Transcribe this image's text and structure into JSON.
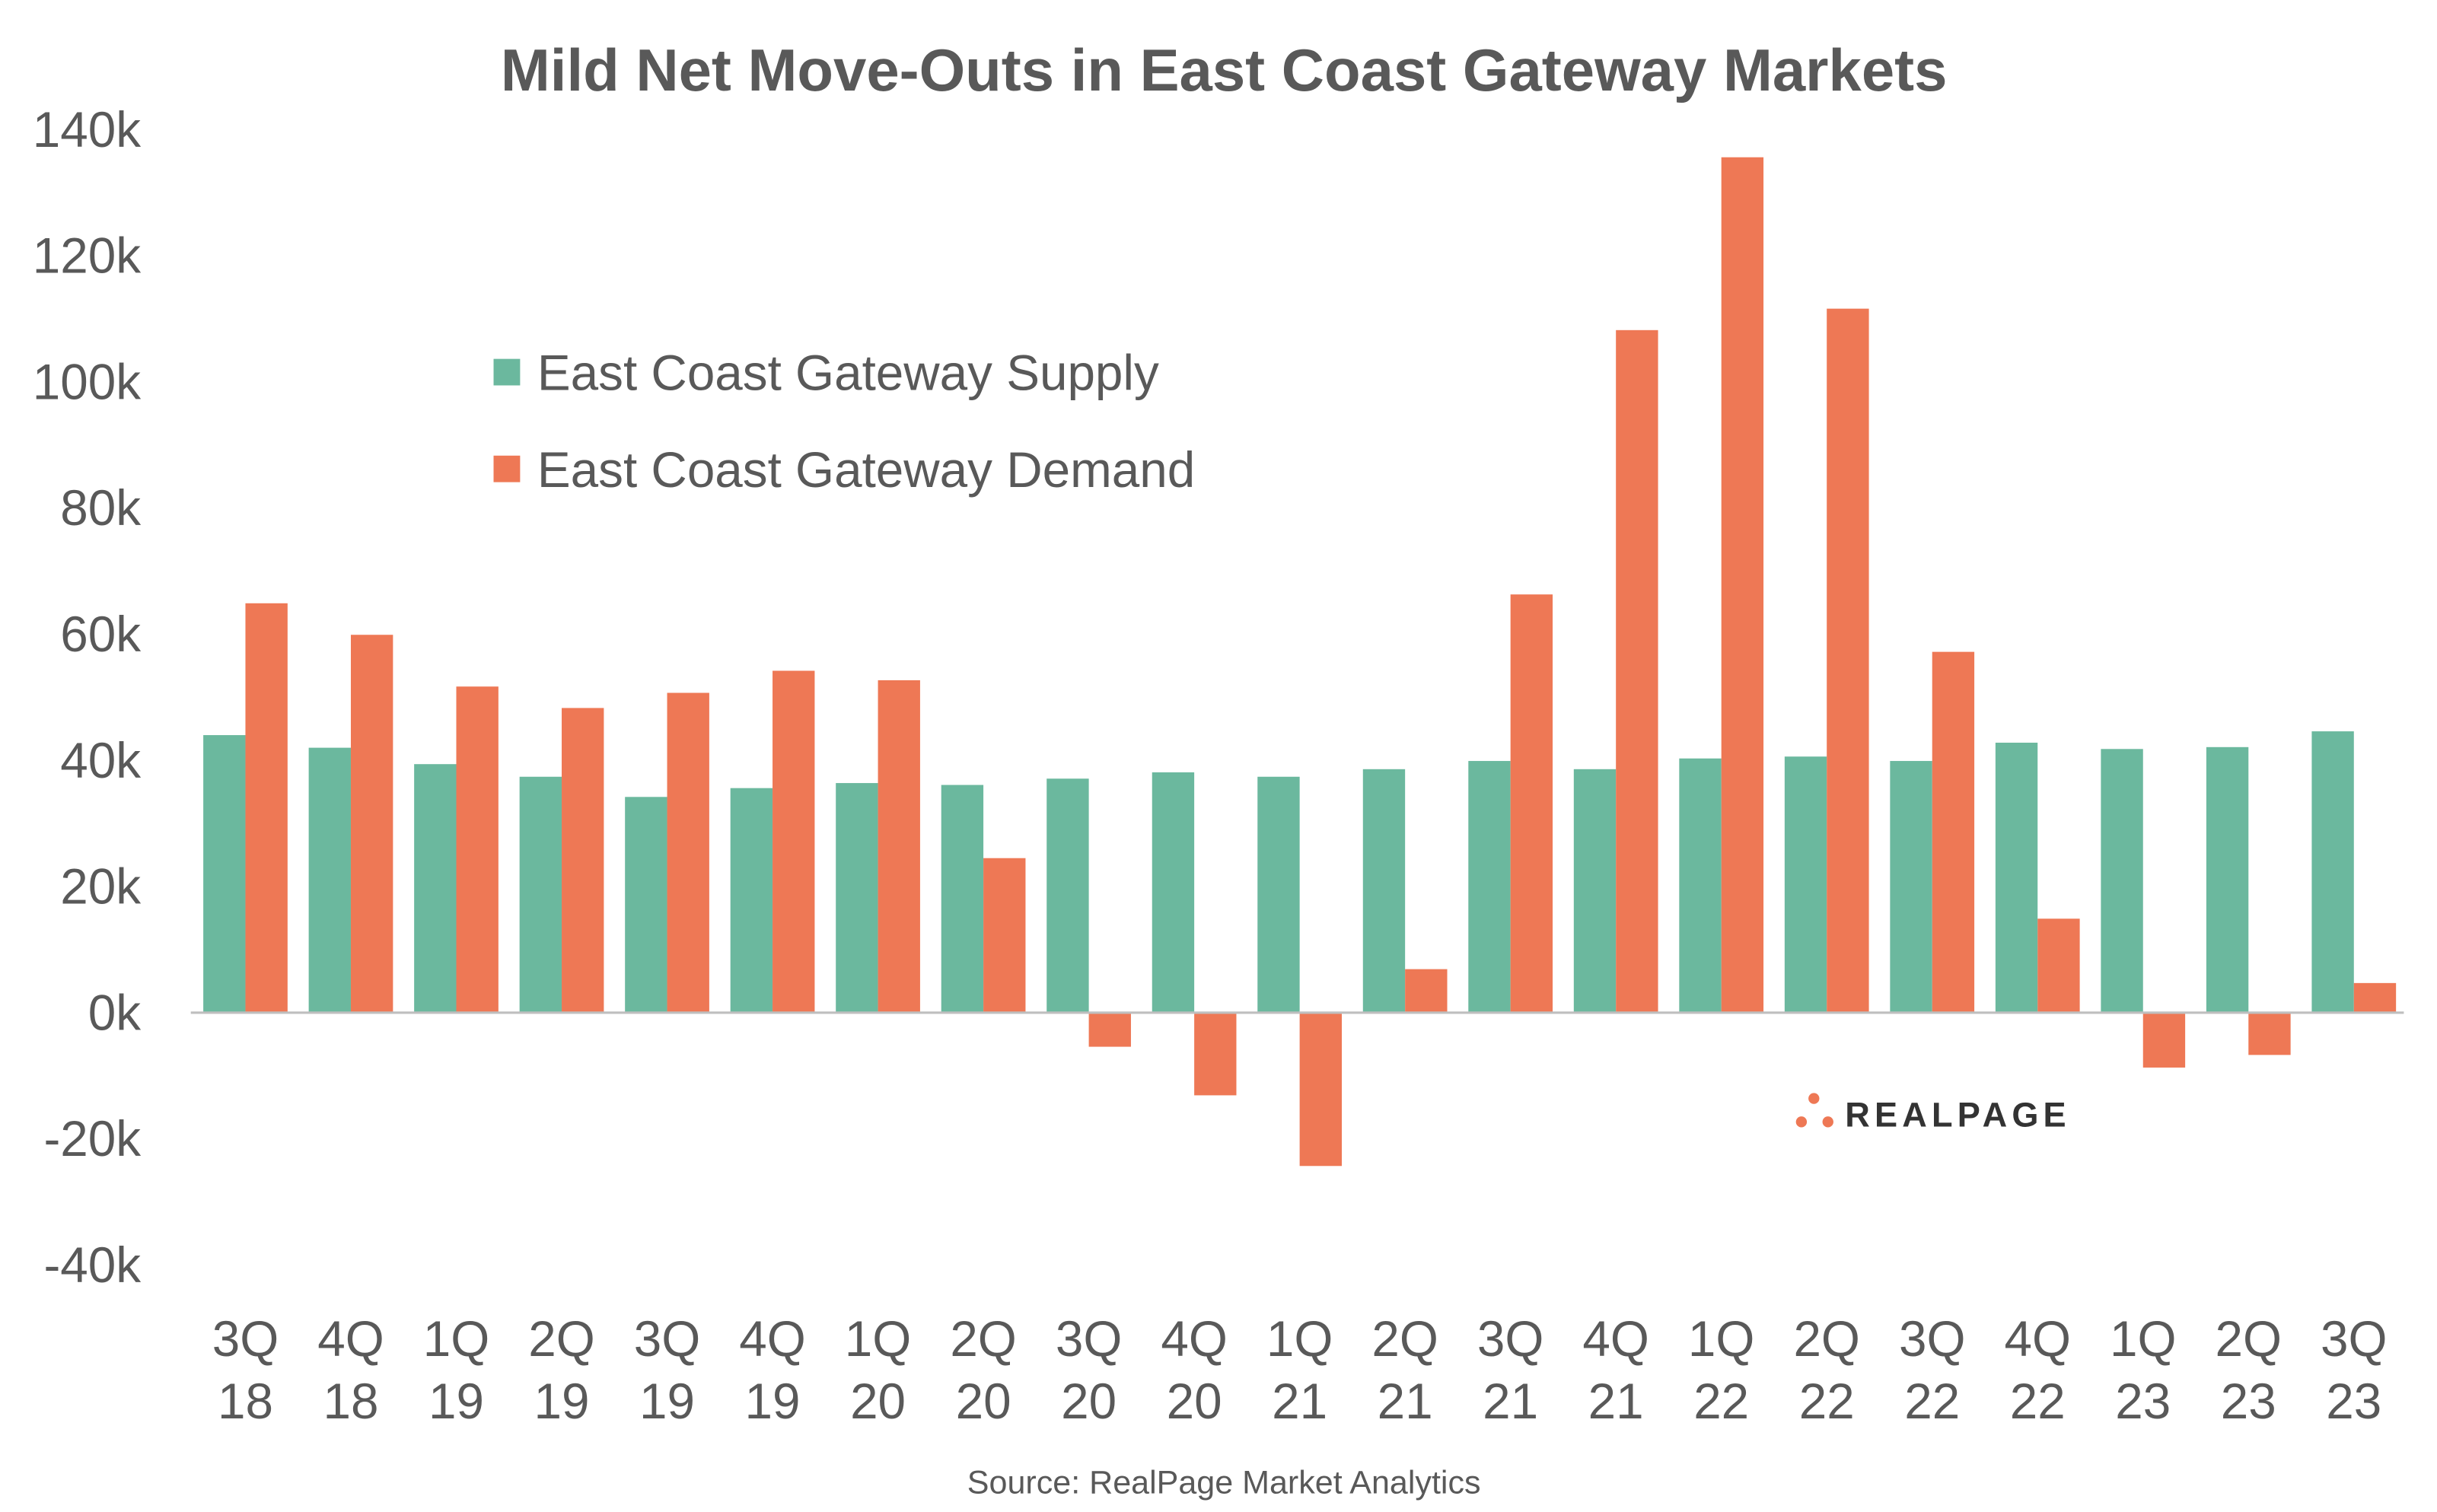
{
  "chart_data": {
    "type": "bar",
    "title": "Mild Net Move-Outs in East Coast Gateway Markets",
    "source": "Source: RealPage Market Analytics",
    "logo_text": "REALPAGE",
    "xlabel": "",
    "ylabel": "",
    "ylim": [
      -40,
      140
    ],
    "yticks": [
      140,
      120,
      100,
      80,
      60,
      40,
      20,
      0,
      -20,
      -40
    ],
    "ytick_labels": [
      "140k",
      "120k",
      "100k",
      "80k",
      "60k",
      "40k",
      "20k",
      "0k",
      "-20k",
      "-40k"
    ],
    "grid": false,
    "legend_position": "upper-left",
    "categories": [
      [
        "3Q",
        "18"
      ],
      [
        "4Q",
        "18"
      ],
      [
        "1Q",
        "19"
      ],
      [
        "2Q",
        "19"
      ],
      [
        "3Q",
        "19"
      ],
      [
        "4Q",
        "19"
      ],
      [
        "1Q",
        "20"
      ],
      [
        "2Q",
        "20"
      ],
      [
        "3Q",
        "20"
      ],
      [
        "4Q",
        "20"
      ],
      [
        "1Q",
        "21"
      ],
      [
        "2Q",
        "21"
      ],
      [
        "3Q",
        "21"
      ],
      [
        "4Q",
        "21"
      ],
      [
        "1Q",
        "22"
      ],
      [
        "2Q",
        "22"
      ],
      [
        "3Q",
        "22"
      ],
      [
        "4Q",
        "22"
      ],
      [
        "1Q",
        "23"
      ],
      [
        "2Q",
        "23"
      ],
      [
        "3Q",
        "23"
      ]
    ],
    "units": "thousands",
    "series": [
      {
        "name": "East Coast Gateway Supply",
        "color": "#6BB89E",
        "values": [
          44.0,
          42.0,
          39.4,
          37.4,
          34.2,
          35.6,
          36.4,
          36.1,
          37.1,
          38.1,
          37.4,
          38.6,
          39.9,
          38.6,
          40.3,
          40.6,
          39.9,
          42.8,
          41.8,
          42.1,
          44.6
        ]
      },
      {
        "name": "East Coast Gateway Demand",
        "color": "#EE7855",
        "values": [
          64.9,
          59.9,
          51.7,
          48.3,
          50.7,
          54.2,
          52.7,
          24.5,
          -5.4,
          -13.1,
          -24.3,
          6.9,
          66.3,
          108.2,
          135.6,
          111.6,
          57.2,
          14.9,
          -8.7,
          -6.7,
          4.7
        ]
      }
    ]
  }
}
